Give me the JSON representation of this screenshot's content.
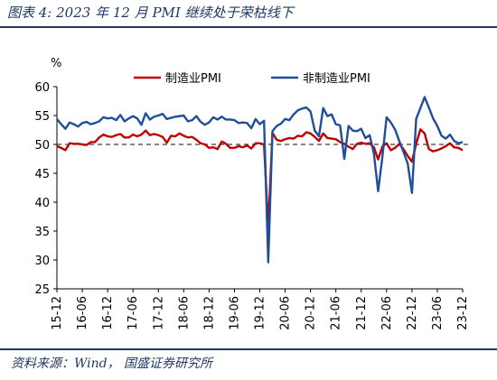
{
  "header": {
    "title": "图表 4:  2023 年 12 月 PMI 继续处于荣枯线下"
  },
  "footer": {
    "source": "资料来源：Wind， 国盛证券研究所"
  },
  "colors": {
    "manufacturing": "#c00000",
    "non_manufacturing": "#1f4e9a",
    "reference_line": "#404040",
    "title": "#1f3864"
  },
  "chart_data": {
    "type": "line",
    "ylabel": "%",
    "ylim": [
      25,
      60
    ],
    "yticks": [
      25,
      30,
      35,
      40,
      45,
      50,
      55,
      60
    ],
    "xlim": [
      "15-12",
      "23-12"
    ],
    "xticks": [
      "15-12",
      "16-06",
      "16-12",
      "17-06",
      "17-12",
      "18-06",
      "18-12",
      "19-06",
      "19-12",
      "20-06",
      "20-12",
      "21-06",
      "21-12",
      "22-06",
      "22-12",
      "23-06",
      "23-12"
    ],
    "reference_line": 50,
    "grid": false,
    "legend_position": "top",
    "series": [
      {
        "name": "制造业PMI",
        "values": [
          [
            "15-12",
            49.7
          ],
          [
            "16-01",
            49.4
          ],
          [
            "16-02",
            49.0
          ],
          [
            "16-03",
            50.2
          ],
          [
            "16-04",
            50.1
          ],
          [
            "16-05",
            50.1
          ],
          [
            "16-06",
            50.0
          ],
          [
            "16-07",
            49.9
          ],
          [
            "16-08",
            50.4
          ],
          [
            "16-09",
            50.4
          ],
          [
            "16-10",
            51.2
          ],
          [
            "16-11",
            51.7
          ],
          [
            "16-12",
            51.4
          ],
          [
            "17-01",
            51.3
          ],
          [
            "17-02",
            51.6
          ],
          [
            "17-03",
            51.8
          ],
          [
            "17-04",
            51.2
          ],
          [
            "17-05",
            51.2
          ],
          [
            "17-06",
            51.7
          ],
          [
            "17-07",
            51.4
          ],
          [
            "17-08",
            51.7
          ],
          [
            "17-09",
            52.4
          ],
          [
            "17-10",
            51.6
          ],
          [
            "17-11",
            51.8
          ],
          [
            "17-12",
            51.6
          ],
          [
            "18-01",
            51.3
          ],
          [
            "18-02",
            50.3
          ],
          [
            "18-03",
            51.5
          ],
          [
            "18-04",
            51.4
          ],
          [
            "18-05",
            51.9
          ],
          [
            "18-06",
            51.5
          ],
          [
            "18-07",
            51.2
          ],
          [
            "18-08",
            51.3
          ],
          [
            "18-09",
            50.8
          ],
          [
            "18-10",
            50.2
          ],
          [
            "18-11",
            50.0
          ],
          [
            "18-12",
            49.4
          ],
          [
            "19-01",
            49.5
          ],
          [
            "19-02",
            49.2
          ],
          [
            "19-03",
            50.5
          ],
          [
            "19-04",
            50.1
          ],
          [
            "19-05",
            49.4
          ],
          [
            "19-06",
            49.4
          ],
          [
            "19-07",
            49.7
          ],
          [
            "19-08",
            49.5
          ],
          [
            "19-09",
            49.8
          ],
          [
            "19-10",
            49.3
          ],
          [
            "19-11",
            50.2
          ],
          [
            "19-12",
            50.2
          ],
          [
            "20-01",
            50.0
          ],
          [
            "20-02",
            35.7
          ],
          [
            "20-03",
            52.0
          ],
          [
            "20-04",
            50.8
          ],
          [
            "20-05",
            50.6
          ],
          [
            "20-06",
            50.9
          ],
          [
            "20-07",
            51.1
          ],
          [
            "20-08",
            51.0
          ],
          [
            "20-09",
            51.5
          ],
          [
            "20-10",
            51.4
          ],
          [
            "20-11",
            52.1
          ],
          [
            "20-12",
            51.9
          ],
          [
            "21-01",
            51.3
          ],
          [
            "21-02",
            50.6
          ],
          [
            "21-03",
            51.9
          ],
          [
            "21-04",
            51.1
          ],
          [
            "21-05",
            51.0
          ],
          [
            "21-06",
            50.9
          ],
          [
            "21-07",
            50.4
          ],
          [
            "21-08",
            50.1
          ],
          [
            "21-09",
            49.6
          ],
          [
            "21-10",
            49.2
          ],
          [
            "21-11",
            50.1
          ],
          [
            "21-12",
            50.3
          ],
          [
            "22-01",
            50.1
          ],
          [
            "22-02",
            50.2
          ],
          [
            "22-03",
            49.5
          ],
          [
            "22-04",
            47.4
          ],
          [
            "22-05",
            49.6
          ],
          [
            "22-06",
            50.2
          ],
          [
            "22-07",
            49.0
          ],
          [
            "22-08",
            49.4
          ],
          [
            "22-09",
            50.1
          ],
          [
            "22-10",
            49.2
          ],
          [
            "22-11",
            48.0
          ],
          [
            "22-12",
            47.0
          ],
          [
            "23-01",
            50.1
          ],
          [
            "23-02",
            52.6
          ],
          [
            "23-03",
            51.9
          ],
          [
            "23-04",
            49.2
          ],
          [
            "23-05",
            48.8
          ],
          [
            "23-06",
            49.0
          ],
          [
            "23-07",
            49.3
          ],
          [
            "23-08",
            49.7
          ],
          [
            "23-09",
            50.2
          ],
          [
            "23-10",
            49.5
          ],
          [
            "23-11",
            49.4
          ],
          [
            "23-12",
            49.0
          ]
        ]
      },
      {
        "name": "非制造业PMI",
        "values": [
          [
            "15-12",
            54.4
          ],
          [
            "16-01",
            53.5
          ],
          [
            "16-02",
            52.7
          ],
          [
            "16-03",
            53.8
          ],
          [
            "16-04",
            53.5
          ],
          [
            "16-05",
            53.1
          ],
          [
            "16-06",
            53.7
          ],
          [
            "16-07",
            53.9
          ],
          [
            "16-08",
            53.5
          ],
          [
            "16-09",
            53.7
          ],
          [
            "16-10",
            54.0
          ],
          [
            "16-11",
            54.7
          ],
          [
            "16-12",
            54.5
          ],
          [
            "17-01",
            54.6
          ],
          [
            "17-02",
            54.2
          ],
          [
            "17-03",
            55.1
          ],
          [
            "17-04",
            54.0
          ],
          [
            "17-05",
            54.5
          ],
          [
            "17-06",
            54.9
          ],
          [
            "17-07",
            54.5
          ],
          [
            "17-08",
            53.4
          ],
          [
            "17-09",
            55.4
          ],
          [
            "17-10",
            54.3
          ],
          [
            "17-11",
            54.8
          ],
          [
            "17-12",
            55.0
          ],
          [
            "18-01",
            55.3
          ],
          [
            "18-02",
            54.4
          ],
          [
            "18-03",
            54.6
          ],
          [
            "18-04",
            54.8
          ],
          [
            "18-05",
            54.9
          ],
          [
            "18-06",
            55.0
          ],
          [
            "18-07",
            54.0
          ],
          [
            "18-08",
            54.2
          ],
          [
            "18-09",
            54.9
          ],
          [
            "18-10",
            53.9
          ],
          [
            "18-11",
            53.4
          ],
          [
            "18-12",
            53.8
          ],
          [
            "19-01",
            54.7
          ],
          [
            "19-02",
            54.3
          ],
          [
            "19-03",
            54.8
          ],
          [
            "19-04",
            54.3
          ],
          [
            "19-05",
            54.3
          ],
          [
            "19-06",
            54.2
          ],
          [
            "19-07",
            53.7
          ],
          [
            "19-08",
            53.8
          ],
          [
            "19-09",
            53.7
          ],
          [
            "19-10",
            52.8
          ],
          [
            "19-11",
            54.4
          ],
          [
            "19-12",
            53.5
          ],
          [
            "20-01",
            54.1
          ],
          [
            "20-02",
            29.6
          ],
          [
            "20-03",
            52.3
          ],
          [
            "20-04",
            53.2
          ],
          [
            "20-05",
            53.6
          ],
          [
            "20-06",
            54.4
          ],
          [
            "20-07",
            54.2
          ],
          [
            "20-08",
            55.2
          ],
          [
            "20-09",
            55.9
          ],
          [
            "20-10",
            56.2
          ],
          [
            "20-11",
            56.4
          ],
          [
            "20-12",
            55.7
          ],
          [
            "21-01",
            52.4
          ],
          [
            "21-02",
            51.4
          ],
          [
            "21-03",
            56.3
          ],
          [
            "21-04",
            54.9
          ],
          [
            "21-05",
            55.2
          ],
          [
            "21-06",
            53.5
          ],
          [
            "21-07",
            53.3
          ],
          [
            "21-08",
            47.5
          ],
          [
            "21-09",
            53.2
          ],
          [
            "21-10",
            52.4
          ],
          [
            "21-11",
            52.3
          ],
          [
            "21-12",
            52.7
          ],
          [
            "22-01",
            51.1
          ],
          [
            "22-02",
            51.6
          ],
          [
            "22-03",
            48.4
          ],
          [
            "22-04",
            41.9
          ],
          [
            "22-05",
            47.8
          ],
          [
            "22-06",
            54.7
          ],
          [
            "22-07",
            53.8
          ],
          [
            "22-08",
            52.6
          ],
          [
            "22-09",
            50.6
          ],
          [
            "22-10",
            48.7
          ],
          [
            "22-11",
            46.7
          ],
          [
            "22-12",
            41.6
          ],
          [
            "23-01",
            54.4
          ],
          [
            "23-02",
            56.3
          ],
          [
            "23-03",
            58.2
          ],
          [
            "23-04",
            56.4
          ],
          [
            "23-05",
            54.5
          ],
          [
            "23-06",
            53.2
          ],
          [
            "23-07",
            51.5
          ],
          [
            "23-08",
            51.0
          ],
          [
            "23-09",
            51.7
          ],
          [
            "23-10",
            50.6
          ],
          [
            "23-11",
            50.2
          ],
          [
            "23-12",
            50.4
          ]
        ]
      }
    ]
  }
}
